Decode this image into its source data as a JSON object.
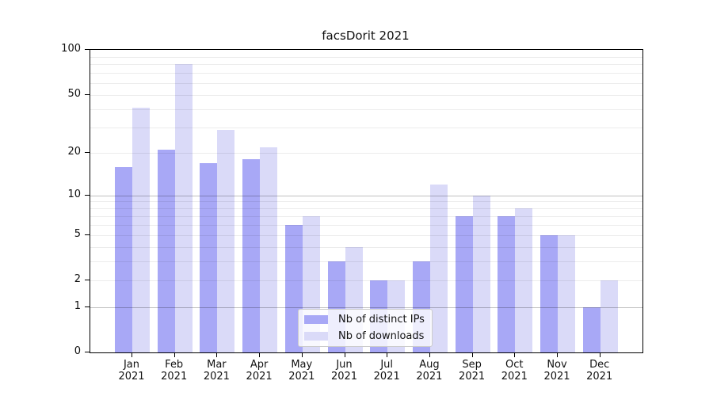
{
  "chart_data": {
    "type": "bar",
    "title": "facsDorit 2021",
    "categories": [
      "Jan",
      "Feb",
      "Mar",
      "Apr",
      "May",
      "Jun",
      "Jul",
      "Aug",
      "Sep",
      "Oct",
      "Nov",
      "Dec"
    ],
    "year_label": "2021",
    "series": [
      {
        "name": "Nb of distinct IPs",
        "color": "#a8a8f6",
        "values": [
          16,
          21,
          17,
          18,
          6,
          3,
          2,
          3,
          7,
          7,
          5,
          1
        ]
      },
      {
        "name": "Nb of downloads",
        "color": "#dadaf8",
        "values": [
          41,
          80,
          29,
          22,
          7,
          4,
          2,
          12,
          10,
          8,
          5,
          2
        ]
      }
    ],
    "yscale": "log1p",
    "ylim": [
      0,
      100
    ],
    "y_ticks": [
      0,
      1,
      2,
      5,
      10,
      20,
      50,
      100
    ],
    "grid": {
      "minor": [
        2,
        3,
        4,
        5,
        6,
        7,
        8,
        9,
        20,
        30,
        40,
        50,
        60,
        70,
        80,
        90
      ],
      "major": [
        1,
        10
      ],
      "grid_on": true
    },
    "legend": {
      "position": "lower-center",
      "entries": [
        "Nb of distinct IPs",
        "Nb of downloads"
      ]
    },
    "colors": {
      "axis": "#000000",
      "grid_minor": "#ececec",
      "grid_major": "#bfbfbf",
      "background": "#ffffff",
      "text": "#111111"
    }
  }
}
